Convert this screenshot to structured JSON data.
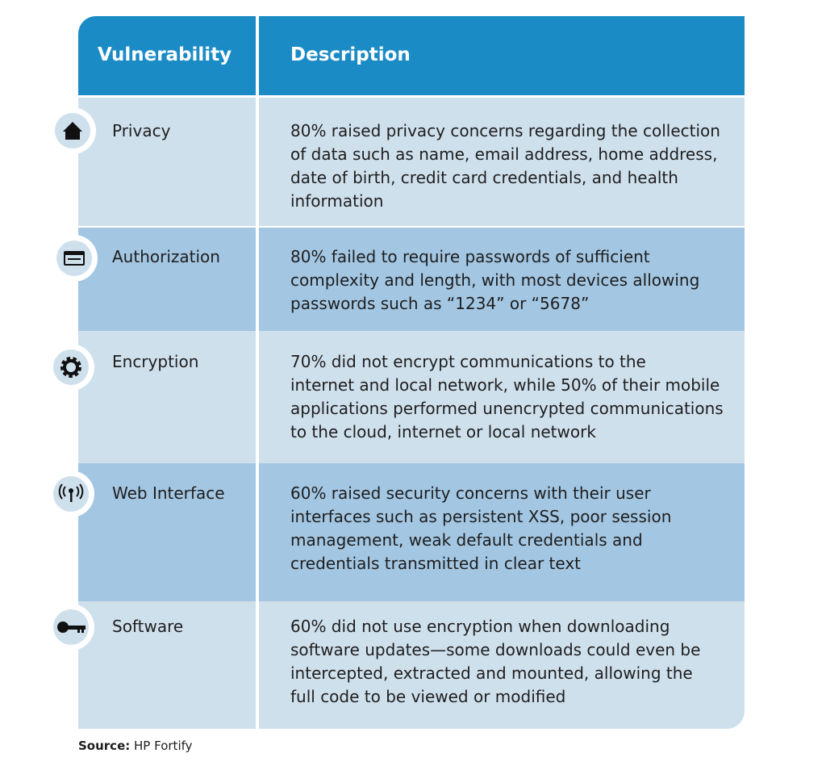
{
  "table": {
    "header": [
      "Vulnerability",
      "Description"
    ],
    "rows": [
      {
        "vulnerability": "Privacy",
        "description_lines": [
          "80% raised privacy concerns regarding the collection",
          "of data such as name, email address, home address,",
          "date of birth, credit card credentials, and health",
          "information"
        ]
      },
      {
        "vulnerability": "Authorization",
        "description_lines": [
          "80% failed to require passwords of sufficient",
          "complexity and length, with most devices allowing",
          "passwords such as “1234” or “5678”"
        ]
      },
      {
        "vulnerability": "Encryption",
        "description_lines": [
          "70% did not encrypt communications to the",
          "internet and local network, while 50% of their mobile",
          "applications performed unencrypted communications",
          "to the cloud, internet or local network"
        ]
      },
      {
        "vulnerability": "Web Interface",
        "description_lines": [
          "60% raised security concerns with their user",
          "interfaces  such as persistent XSS, poor session",
          "management, weak default credentials and",
          "credentials transmitted in clear text"
        ]
      },
      {
        "vulnerability": "Software",
        "description_lines": [
          "60% did not use encryption when downloading",
          "software updates—some downloads could even be",
          "intercepted, extracted and mounted, allowing the",
          "full code to be viewed or modified"
        ]
      }
    ]
  },
  "source": {
    "label": "Source:",
    "value": "HP Fortify"
  }
}
